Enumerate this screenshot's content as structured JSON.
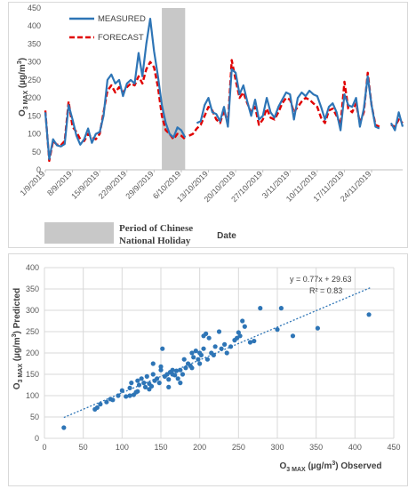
{
  "chart_data": [
    {
      "type": "line",
      "xlabel": "Date",
      "ylabel": "O3 MAX (µg/m3)",
      "ylabel_main": "O",
      "ylabel_sub": "3 MAX",
      "ylabel_unit": " (µg/m",
      "ylabel_sup": "3",
      "ylabel_close": ")",
      "ylim": [
        0,
        450
      ],
      "yticks": [
        0,
        50,
        100,
        150,
        200,
        250,
        300,
        350,
        400,
        450
      ],
      "grid": false,
      "legend_placement": "top-left",
      "x_tick_labels": [
        "1/9/2019",
        "8/9/2019",
        "15/9/2019",
        "22/9/2019",
        "29/9/2019",
        "6/10/2019",
        "13/10/2019",
        "20/10/2019",
        "27/10/2019",
        "3/11/2019",
        "10/11/2019",
        "17/11/2019",
        "24/11/2019"
      ],
      "holiday_band": {
        "from": "1/10/2019",
        "to": "7/10/2019",
        "label_line1": "Period of Chinese",
        "label_line2": "National Holiday",
        "color": "#c8c8c8"
      },
      "series": [
        {
          "name": "MEASURED",
          "color": "#2e75b6",
          "style": "solid",
          "segments": [
            {
              "x": [
                "1/9/2019",
                "2/9/2019",
                "3/9/2019",
                "4/9/2019",
                "5/9/2019",
                "6/9/2019",
                "7/9/2019",
                "8/9/2019",
                "9/9/2019",
                "10/9/2019",
                "11/9/2019",
                "12/9/2019",
                "13/9/2019",
                "14/9/2019",
                "15/9/2019",
                "16/9/2019",
                "17/9/2019",
                "18/9/2019",
                "19/9/2019",
                "20/9/2019",
                "21/9/2019",
                "22/9/2019",
                "23/9/2019",
                "24/9/2019",
                "25/9/2019",
                "26/9/2019",
                "27/9/2019",
                "28/9/2019",
                "29/9/2019",
                "30/9/2019",
                "1/10/2019",
                "2/10/2019",
                "3/10/2019",
                "4/10/2019",
                "5/10/2019",
                "6/10/2019",
                "7/10/2019"
              ],
              "y": [
                160,
                30,
                85,
                68,
                65,
                72,
                180,
                140,
                95,
                70,
                85,
                115,
                75,
                100,
                105,
                150,
                250,
                265,
                240,
                250,
                205,
                240,
                250,
                240,
                325,
                260,
                350,
                420,
                330,
                260,
                180,
                130,
                100,
                90,
                118,
                110,
                90
              ]
            },
            {
              "x": [
                "10/10/2019",
                "11/10/2019",
                "12/10/2019",
                "13/10/2019",
                "14/10/2019",
                "15/10/2019",
                "16/10/2019",
                "17/10/2019",
                "18/10/2019",
                "19/10/2019",
                "20/10/2019",
                "21/10/2019",
                "22/10/2019",
                "23/10/2019",
                "24/10/2019",
                "25/10/2019",
                "26/10/2019",
                "27/10/2019",
                "28/10/2019",
                "29/10/2019",
                "30/10/2019",
                "31/10/2019",
                "1/11/2019",
                "2/11/2019",
                "3/11/2019",
                "4/11/2019",
                "5/11/2019",
                "6/11/2019",
                "7/11/2019",
                "8/11/2019",
                "9/11/2019",
                "10/11/2019",
                "11/11/2019",
                "12/11/2019",
                "13/11/2019",
                "14/11/2019",
                "15/11/2019",
                "16/11/2019",
                "17/11/2019",
                "18/11/2019",
                "19/11/2019",
                "20/11/2019",
                "21/11/2019",
                "22/11/2019",
                "23/11/2019",
                "24/11/2019",
                "25/11/2019",
                "26/11/2019"
              ],
              "y": [
                130,
                135,
                180,
                200,
                160,
                155,
                135,
                175,
                120,
                280,
                270,
                210,
                235,
                190,
                150,
                195,
                140,
                150,
                200,
                160,
                145,
                175,
                195,
                215,
                210,
                140,
                200,
                215,
                205,
                220,
                210,
                205,
                175,
                140,
                175,
                185,
                160,
                110,
                210,
                180,
                175,
                200,
                120,
                170,
                260,
                180,
                120,
                115
              ]
            },
            {
              "x": [
                "29/11/2019",
                "30/11/2019",
                "1/12/2019",
                "2/12/2019"
              ],
              "y": [
                130,
                110,
                160,
                120
              ]
            }
          ]
        },
        {
          "name": "FORECAST",
          "color": "#e00000",
          "style": "dashed",
          "segments": [
            {
              "x": [
                "1/9/2019",
                "2/9/2019",
                "3/9/2019",
                "4/9/2019",
                "5/9/2019",
                "6/9/2019",
                "7/9/2019",
                "8/9/2019",
                "9/9/2019",
                "10/9/2019",
                "11/9/2019",
                "12/9/2019",
                "13/9/2019",
                "14/9/2019",
                "15/9/2019",
                "16/9/2019",
                "17/9/2019",
                "18/9/2019",
                "19/9/2019",
                "20/9/2019",
                "21/9/2019",
                "22/9/2019",
                "23/9/2019",
                "24/9/2019",
                "25/9/2019",
                "26/9/2019",
                "27/9/2019",
                "28/9/2019",
                "29/9/2019",
                "30/9/2019",
                "1/10/2019",
                "2/10/2019",
                "3/10/2019",
                "4/10/2019",
                "5/10/2019",
                "6/10/2019",
                "7/10/2019"
              ],
              "y": [
                165,
                25,
                80,
                70,
                68,
                80,
                190,
                120,
                105,
                85,
                80,
                100,
                90,
                85,
                100,
                160,
                220,
                235,
                215,
                230,
                215,
                230,
                240,
                235,
                260,
                240,
                280,
                300,
                285,
                230,
                150,
                110,
                100,
                85,
                100,
                95,
                85
              ]
            },
            {
              "x": [
                "8/10/2019",
                "9/10/2019",
                "10/10/2019",
                "11/10/2019",
                "12/10/2019",
                "13/10/2019",
                "14/10/2019",
                "15/10/2019",
                "16/10/2019",
                "17/10/2019",
                "18/10/2019",
                "19/10/2019",
                "20/10/2019",
                "21/10/2019",
                "22/10/2019",
                "23/10/2019",
                "24/10/2019",
                "25/10/2019",
                "26/10/2019",
                "27/10/2019",
                "28/10/2019",
                "29/10/2019",
                "30/10/2019",
                "31/10/2019",
                "1/11/2019",
                "2/11/2019",
                "3/11/2019",
                "4/11/2019",
                "5/11/2019",
                "6/11/2019",
                "7/11/2019",
                "8/11/2019",
                "9/11/2019",
                "10/11/2019",
                "11/11/2019",
                "12/11/2019",
                "13/11/2019",
                "14/11/2019",
                "15/11/2019",
                "16/11/2019",
                "17/11/2019",
                "18/11/2019",
                "19/11/2019",
                "20/11/2019",
                "21/11/2019",
                "22/11/2019",
                "23/11/2019",
                "24/11/2019",
                "25/11/2019",
                "26/11/2019"
              ],
              "y": [
                95,
                100,
                115,
                125,
                150,
                175,
                165,
                140,
                130,
                165,
                130,
                305,
                250,
                200,
                215,
                185,
                160,
                175,
                125,
                140,
                170,
                145,
                140,
                160,
                185,
                200,
                195,
                160,
                175,
                190,
                200,
                195,
                185,
                175,
                145,
                130,
                165,
                170,
                150,
                125,
                245,
                170,
                160,
                185,
                130,
                160,
                270,
                180,
                125,
                120
              ]
            },
            {
              "x": [
                "29/11/2019",
                "30/11/2019",
                "1/12/2019",
                "2/12/2019"
              ],
              "y": [
                125,
                120,
                140,
                130
              ]
            }
          ]
        }
      ]
    },
    {
      "type": "scatter",
      "xlabel_main": "O",
      "xlabel_sub": "3 MAX",
      "xlabel_unit": " (µg/m",
      "xlabel_sup": "3",
      "xlabel_close": ") Observed",
      "ylabel_main": "O",
      "ylabel_sub": "3 MAX",
      "ylabel_unit": " (µg/m",
      "ylabel_sup": "3",
      "ylabel_close": ") Predicted",
      "xlim": [
        0,
        450
      ],
      "ylim": [
        0,
        400
      ],
      "xticks": [
        0,
        50,
        100,
        150,
        200,
        250,
        300,
        350,
        400,
        450
      ],
      "yticks": [
        0,
        50,
        100,
        150,
        200,
        250,
        300,
        350,
        400
      ],
      "grid": true,
      "point_color": "#2e75b6",
      "trendline": {
        "slope": 0.77,
        "intercept": 29.63,
        "x_range": [
          25,
          420
        ],
        "color": "#2e75b6",
        "equation": "y = 0.77x + 29.63",
        "r2": "R² = 0.83"
      },
      "points": [
        {
          "x": 25,
          "y": 25
        },
        {
          "x": 65,
          "y": 68
        },
        {
          "x": 68,
          "y": 72
        },
        {
          "x": 72,
          "y": 80
        },
        {
          "x": 80,
          "y": 85
        },
        {
          "x": 85,
          "y": 92
        },
        {
          "x": 88,
          "y": 90
        },
        {
          "x": 95,
          "y": 100
        },
        {
          "x": 100,
          "y": 112
        },
        {
          "x": 105,
          "y": 98
        },
        {
          "x": 110,
          "y": 118
        },
        {
          "x": 112,
          "y": 130
        },
        {
          "x": 115,
          "y": 102
        },
        {
          "x": 118,
          "y": 108
        },
        {
          "x": 120,
          "y": 135
        },
        {
          "x": 122,
          "y": 125
        },
        {
          "x": 125,
          "y": 140
        },
        {
          "x": 128,
          "y": 130
        },
        {
          "x": 130,
          "y": 120
        },
        {
          "x": 132,
          "y": 145
        },
        {
          "x": 135,
          "y": 128
        },
        {
          "x": 138,
          "y": 122
        },
        {
          "x": 140,
          "y": 150
        },
        {
          "x": 140,
          "y": 175
        },
        {
          "x": 142,
          "y": 135
        },
        {
          "x": 145,
          "y": 140
        },
        {
          "x": 148,
          "y": 130
        },
        {
          "x": 150,
          "y": 160
        },
        {
          "x": 150,
          "y": 168
        },
        {
          "x": 152,
          "y": 210
        },
        {
          "x": 155,
          "y": 145
        },
        {
          "x": 158,
          "y": 150
        },
        {
          "x": 160,
          "y": 138
        },
        {
          "x": 162,
          "y": 155
        },
        {
          "x": 165,
          "y": 160
        },
        {
          "x": 165,
          "y": 150
        },
        {
          "x": 168,
          "y": 148
        },
        {
          "x": 170,
          "y": 158
        },
        {
          "x": 172,
          "y": 140
        },
        {
          "x": 175,
          "y": 160
        },
        {
          "x": 178,
          "y": 150
        },
        {
          "x": 180,
          "y": 185
        },
        {
          "x": 182,
          "y": 165
        },
        {
          "x": 185,
          "y": 175
        },
        {
          "x": 188,
          "y": 170
        },
        {
          "x": 190,
          "y": 165
        },
        {
          "x": 190,
          "y": 200
        },
        {
          "x": 192,
          "y": 190
        },
        {
          "x": 195,
          "y": 205
        },
        {
          "x": 198,
          "y": 185
        },
        {
          "x": 200,
          "y": 200
        },
        {
          "x": 200,
          "y": 175
        },
        {
          "x": 202,
          "y": 195
        },
        {
          "x": 205,
          "y": 210
        },
        {
          "x": 205,
          "y": 240
        },
        {
          "x": 208,
          "y": 245
        },
        {
          "x": 210,
          "y": 185
        },
        {
          "x": 212,
          "y": 235
        },
        {
          "x": 215,
          "y": 200
        },
        {
          "x": 218,
          "y": 195
        },
        {
          "x": 220,
          "y": 215
        },
        {
          "x": 225,
          "y": 250
        },
        {
          "x": 228,
          "y": 210
        },
        {
          "x": 232,
          "y": 220
        },
        {
          "x": 235,
          "y": 200
        },
        {
          "x": 240,
          "y": 215
        },
        {
          "x": 245,
          "y": 230
        },
        {
          "x": 248,
          "y": 235
        },
        {
          "x": 250,
          "y": 248
        },
        {
          "x": 252,
          "y": 240
        },
        {
          "x": 255,
          "y": 275
        },
        {
          "x": 258,
          "y": 262
        },
        {
          "x": 265,
          "y": 225
        },
        {
          "x": 270,
          "y": 228
        },
        {
          "x": 278,
          "y": 305
        },
        {
          "x": 300,
          "y": 255
        },
        {
          "x": 305,
          "y": 305
        },
        {
          "x": 320,
          "y": 240
        },
        {
          "x": 352,
          "y": 258
        },
        {
          "x": 418,
          "y": 290
        },
        {
          "x": 120,
          "y": 110
        },
        {
          "x": 135,
          "y": 115
        },
        {
          "x": 160,
          "y": 120
        },
        {
          "x": 175,
          "y": 130
        },
        {
          "x": 110,
          "y": 100
        }
      ]
    }
  ]
}
